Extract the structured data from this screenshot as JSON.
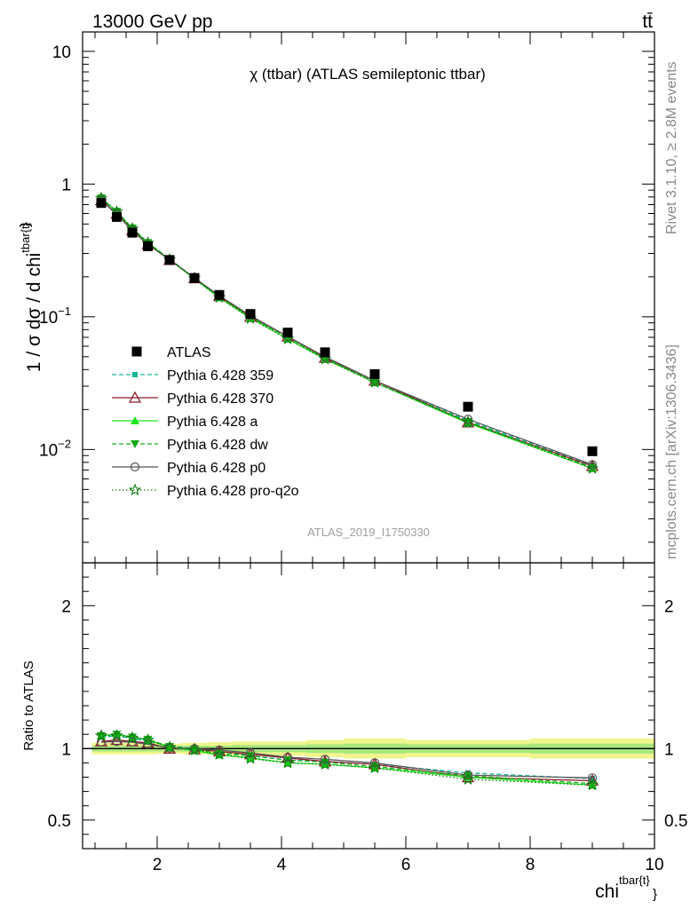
{
  "header": {
    "energy_label": "13000 GeV pp",
    "process_label": "tt̄"
  },
  "side_labels": {
    "rivet": "Rivet 3.1.10, ≥ 2.8M events",
    "mcplots": "mcplots.cern.ch [arXiv:1306.3436]"
  },
  "chart_data": [
    {
      "type": "scatter",
      "panel": "main",
      "title": "χ (ttbar) (ATLAS semileptonic ttbar)",
      "xlabel": "chi",
      "xlabel_sup": "tbar{t}",
      "xlabel_sub": "}",
      "ylabel_text": "1 / σ dσ / d chi",
      "ylabel_sup": "tbar{t}",
      "ylabel_brace": "}",
      "watermark": "ATLAS_2019_I1750330",
      "xlim": [
        0.8,
        10.0
      ],
      "ylim": [
        0.0014,
        14
      ],
      "yscale": "log",
      "x_ticks": [
        2,
        4,
        6,
        8,
        10
      ],
      "y_ticks": [
        {
          "value": 10,
          "base": "10",
          "exp": ""
        },
        {
          "value": 1,
          "base": "1",
          "exp": ""
        },
        {
          "value": 0.1,
          "base": "10",
          "exp": "−1"
        },
        {
          "value": 0.01,
          "base": "10",
          "exp": "−2"
        }
      ],
      "legend_position": "left-middle",
      "x": [
        1.1,
        1.35,
        1.6,
        1.85,
        2.2,
        2.6,
        3.0,
        3.5,
        4.1,
        4.7,
        5.5,
        7.0,
        9.0
      ],
      "data": {
        "name": "ATLAS",
        "values": [
          0.72,
          0.565,
          0.43,
          0.34,
          0.268,
          0.196,
          0.146,
          0.105,
          0.076,
          0.054,
          0.037,
          0.021,
          0.0097
        ]
      },
      "series": [
        {
          "name": "Pythia 6.428 359",
          "color": "#17b897",
          "dash": "5,3",
          "marker": "square-small",
          "values": [
            0.78,
            0.616,
            0.46,
            0.357,
            0.273,
            0.196,
            0.143,
            0.1,
            0.07,
            0.049,
            0.033,
            0.0165,
            0.0076
          ]
        },
        {
          "name": "Pythia 6.428 370",
          "color": "#8b1a2b",
          "dash": "",
          "marker": "triangle-open",
          "values": [
            0.755,
            0.597,
            0.449,
            0.352,
            0.268,
            0.195,
            0.143,
            0.1,
            0.071,
            0.049,
            0.033,
            0.016,
            0.0075
          ]
        },
        {
          "name": "Pythia 6.428 a",
          "color": "#19e619",
          "dash": "",
          "marker": "triangle-filled",
          "values": [
            0.785,
            0.62,
            0.463,
            0.36,
            0.27,
            0.193,
            0.139,
            0.098,
            0.068,
            0.048,
            0.032,
            0.0158,
            0.0072
          ]
        },
        {
          "name": "Pythia 6.428 dw",
          "color": "#16a816",
          "dash": "5,3",
          "marker": "triangle-down",
          "values": [
            0.786,
            0.622,
            0.466,
            0.362,
            0.272,
            0.195,
            0.141,
            0.1,
            0.07,
            0.049,
            0.032,
            0.0162,
            0.0073
          ]
        },
        {
          "name": "Pythia 6.428 p0",
          "color": "#555555",
          "dash": "",
          "marker": "circle-open",
          "values": [
            0.752,
            0.592,
            0.445,
            0.35,
            0.27,
            0.196,
            0.144,
            0.102,
            0.071,
            0.05,
            0.033,
            0.0169,
            0.0077
          ]
        },
        {
          "name": "Pythia 6.428 pro-q2o",
          "color": "#0c7a0c",
          "dash": "1.5,2.5",
          "marker": "star-open",
          "values": [
            0.784,
            0.618,
            0.462,
            0.36,
            0.27,
            0.195,
            0.14,
            0.097,
            0.068,
            0.048,
            0.032,
            0.016,
            0.0072
          ]
        }
      ]
    },
    {
      "type": "line",
      "panel": "ratio",
      "ylabel": "Ratio to ATLAS",
      "xlim": [
        0.8,
        10.0
      ],
      "ylim": [
        0.3,
        2.3
      ],
      "x_ticks": [
        2,
        4,
        6,
        8,
        10
      ],
      "y_ticks": [
        0.5,
        1,
        2
      ],
      "x": [
        1.1,
        1.35,
        1.6,
        1.85,
        2.2,
        2.6,
        3.0,
        3.5,
        4.1,
        4.7,
        5.5,
        7.0,
        9.0
      ],
      "band": {
        "bins": [
          {
            "lo": 0.95,
            "hi": 1.25,
            "inner": 0.02,
            "outer": 0.04
          },
          {
            "lo": 1.25,
            "hi": 1.5,
            "inner": 0.02,
            "outer": 0.04
          },
          {
            "lo": 1.5,
            "hi": 1.75,
            "inner": 0.02,
            "outer": 0.04
          },
          {
            "lo": 1.75,
            "hi": 2.0,
            "inner": 0.02,
            "outer": 0.04
          },
          {
            "lo": 2.0,
            "hi": 2.4,
            "inner": 0.02,
            "outer": 0.035
          },
          {
            "lo": 2.4,
            "hi": 2.8,
            "inner": 0.02,
            "outer": 0.04
          },
          {
            "lo": 2.8,
            "hi": 3.2,
            "inner": 0.02,
            "outer": 0.045
          },
          {
            "lo": 3.2,
            "hi": 3.8,
            "inner": 0.025,
            "outer": 0.05
          },
          {
            "lo": 3.8,
            "hi": 4.4,
            "inner": 0.025,
            "outer": 0.05
          },
          {
            "lo": 4.4,
            "hi": 5.0,
            "inner": 0.03,
            "outer": 0.06
          },
          {
            "lo": 5.0,
            "hi": 6.0,
            "inner": 0.035,
            "outer": 0.07
          },
          {
            "lo": 6.0,
            "hi": 8.0,
            "inner": 0.03,
            "outer": 0.06
          },
          {
            "lo": 8.0,
            "hi": 10.0,
            "inner": 0.035,
            "outer": 0.07
          }
        ]
      },
      "series": [
        {
          "name": "Pythia 6.428 359",
          "values": [
            1.08,
            1.09,
            1.07,
            1.05,
            1.02,
            1.0,
            0.98,
            0.95,
            0.92,
            0.91,
            0.89,
            0.83,
            0.79
          ]
        },
        {
          "name": "Pythia 6.428 370",
          "values": [
            1.05,
            1.06,
            1.05,
            1.04,
            1.0,
            0.995,
            0.98,
            0.96,
            0.935,
            0.91,
            0.89,
            0.8,
            0.775
          ]
        },
        {
          "name": "Pythia 6.428 a",
          "values": [
            1.09,
            1.1,
            1.08,
            1.06,
            1.01,
            0.985,
            0.955,
            0.935,
            0.9,
            0.89,
            0.865,
            0.8,
            0.745
          ]
        },
        {
          "name": "Pythia 6.428 dw",
          "values": [
            1.09,
            1.1,
            1.08,
            1.065,
            1.015,
            0.995,
            0.965,
            0.95,
            0.92,
            0.905,
            0.875,
            0.81,
            0.755
          ]
        },
        {
          "name": "Pythia 6.428 p0",
          "values": [
            1.045,
            1.05,
            1.045,
            1.03,
            1.005,
            1.0,
            0.99,
            0.97,
            0.94,
            0.925,
            0.9,
            0.815,
            0.795
          ]
        },
        {
          "name": "Pythia 6.428 pro-q2o",
          "values": [
            1.09,
            1.09,
            1.075,
            1.06,
            1.01,
            0.99,
            0.96,
            0.93,
            0.9,
            0.89,
            0.865,
            0.785,
            0.745
          ]
        }
      ]
    }
  ]
}
